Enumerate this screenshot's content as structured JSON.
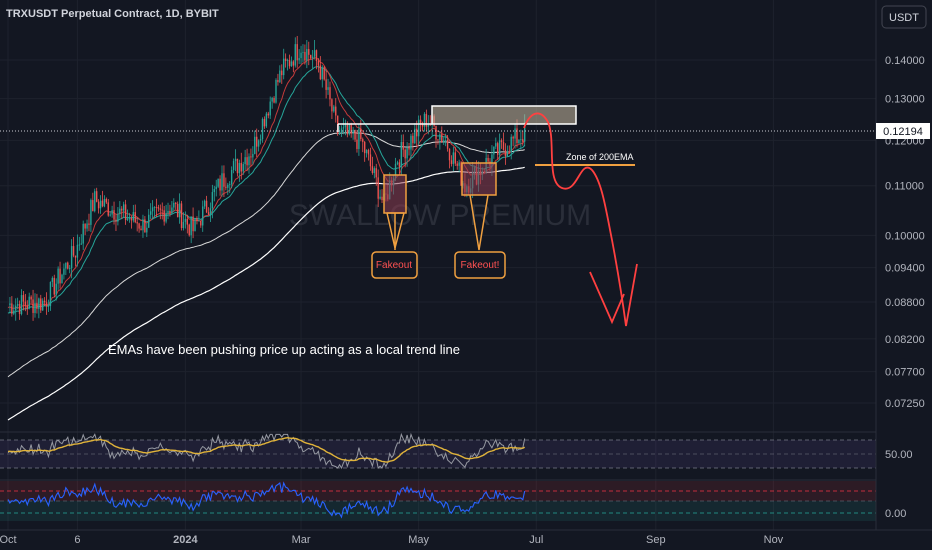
{
  "chart_data": {
    "type": "candlestick",
    "title": "TRXUSDT Perpetual Contract, 1D, BYBIT",
    "currency": "USDT",
    "watermark": "SWALLOW PREMIUM",
    "last_price": "0.12194",
    "y_ticks": [
      "0.14000",
      "0.13000",
      "0.12000",
      "0.11000",
      "0.10000",
      "0.09400",
      "0.08800",
      "0.08200",
      "0.07700",
      "0.07250"
    ],
    "x_ticks": [
      "Oct",
      "6",
      "2024",
      "Mar",
      "May",
      "Jul",
      "Sep",
      "Nov"
    ],
    "annotations": {
      "trend_note": "EMAs have been pushing price up acting as a local trend line",
      "zone_label": "Zone of 200EMA",
      "fakeout_1": "Fakeout",
      "fakeout_2": "Fakeout!"
    },
    "key_path": [
      [
        "2023-10-01",
        0.0875
      ],
      [
        "2023-10-20",
        0.088
      ],
      [
        "2023-11-05",
        0.097
      ],
      [
        "2023-11-15",
        0.107
      ],
      [
        "2023-12-10",
        0.102
      ],
      [
        "2023-12-25",
        0.106
      ],
      [
        "2024-01-05",
        0.101
      ],
      [
        "2024-01-20",
        0.111
      ],
      [
        "2024-02-05",
        0.118
      ],
      [
        "2024-02-20",
        0.137
      ],
      [
        "2024-03-01",
        0.144
      ],
      [
        "2024-03-10",
        0.139
      ],
      [
        "2024-03-20",
        0.122
      ],
      [
        "2024-04-01",
        0.12
      ],
      [
        "2024-04-13",
        0.106
      ],
      [
        "2024-04-20",
        0.116
      ],
      [
        "2024-05-05",
        0.125
      ],
      [
        "2024-05-15",
        0.12
      ],
      [
        "2024-05-25",
        0.11
      ],
      [
        "2024-06-10",
        0.117
      ],
      [
        "2024-06-25",
        0.1219
      ]
    ],
    "panels": {
      "rsi": {
        "level_label": "50.00"
      },
      "oscillator": {
        "level_label": "0.00"
      }
    }
  }
}
